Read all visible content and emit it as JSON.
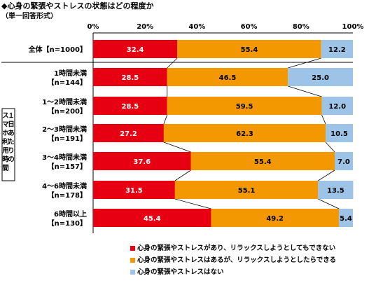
{
  "header": {
    "title": "◆心身の緊張やストレスの状態はどの程度か",
    "subtitle": "（単一回答形式）"
  },
  "group_label": [
    "１日あたりの",
    "スマホ利用時間"
  ],
  "chart_data": {
    "type": "bar",
    "orientation": "horizontal",
    "stacked": true,
    "title": "◆心身の緊張やストレスの状態はどの程度か",
    "subtitle": "（単一回答形式）",
    "xlim": [
      0,
      100
    ],
    "x_ticks": [
      "0%",
      "20%",
      "40%",
      "60%",
      "80%",
      "100%"
    ],
    "grid": false,
    "legend_position": "bottom",
    "categories": [
      [
        "全体【n=1000】"
      ],
      [
        "1時間未満",
        "【n=144】"
      ],
      [
        "1～2時間未満",
        "【n=200】"
      ],
      [
        "2～3時間未満",
        "【n=191】"
      ],
      [
        "3～4時間未満",
        "【n=157】"
      ],
      [
        "4～6時間未満",
        "【n=178】"
      ],
      [
        "6時間以上",
        "【n=130】"
      ]
    ],
    "series": [
      {
        "name": "心身の緊張やストレスがあり、リラックスしようとしてもできない",
        "color": "#e60012",
        "values": [
          32.4,
          28.5,
          28.5,
          27.2,
          37.6,
          31.5,
          45.4
        ]
      },
      {
        "name": "心身の緊張やストレスはあるが、リラックスしようとしたらできる",
        "color": "#f39800",
        "values": [
          55.4,
          46.5,
          59.5,
          62.3,
          55.4,
          55.1,
          49.2
        ]
      },
      {
        "name": "心身の緊張やストレスはない",
        "color": "#9dc3e6",
        "values": [
          12.2,
          25.0,
          12.0,
          10.5,
          7.0,
          13.5,
          5.4
        ]
      }
    ],
    "value_labels": [
      [
        "32.4",
        "55.4",
        "12.2"
      ],
      [
        "28.5",
        "46.5",
        "25.0"
      ],
      [
        "28.5",
        "59.5",
        "12.0"
      ],
      [
        "27.2",
        "62.3",
        "10.5"
      ],
      [
        "37.6",
        "55.4",
        "7.0"
      ],
      [
        "31.5",
        "55.1",
        "13.5"
      ],
      [
        "45.4",
        "49.2",
        "5.4"
      ]
    ]
  }
}
